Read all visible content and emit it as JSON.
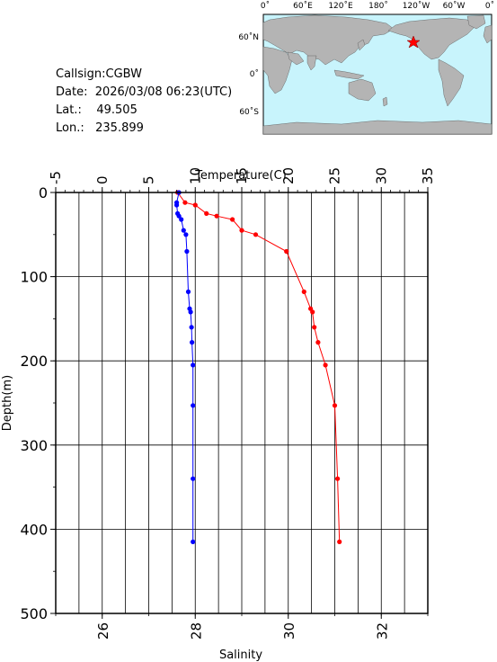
{
  "station": {
    "callsign_label": "Callsign:",
    "callsign": "CGBW",
    "date_label": "Date:",
    "date": "2026/03/08 06:23(UTC)",
    "lat_label": "Lat.:",
    "lat": "49.505",
    "lon_label": "Lon.:",
    "lon": "235.899"
  },
  "map": {
    "top_ticks": [
      "0˚",
      "60˚E",
      "120˚E",
      "180˚",
      "120˚W",
      "60˚W",
      "0˚"
    ],
    "left_ticks": [
      "60˚N",
      "0˚",
      "60˚S"
    ],
    "ocean_color": "#c8f4fc",
    "land_color": "#b4b4b4",
    "marker_color": "#ff0000",
    "marker_icon": "star-icon"
  },
  "chart_data": {
    "type": "line",
    "top_axis": {
      "label": "Temperature(C)",
      "range": [
        -5,
        35
      ],
      "ticks": [
        -5,
        0,
        5,
        10,
        15,
        20,
        25,
        30,
        35
      ]
    },
    "bottom_axis": {
      "label": "Salinity",
      "range": [
        25,
        33
      ],
      "ticks": [
        26,
        28,
        30,
        32
      ]
    },
    "left_axis": {
      "label": "Depth(m)",
      "range": [
        0,
        500
      ],
      "ticks": [
        0,
        100,
        200,
        300,
        400,
        500
      ]
    },
    "grid": true,
    "series": [
      {
        "color": "#ff0000",
        "axis": "temperature",
        "depth": [
          0,
          12,
          15,
          25,
          28,
          32,
          45,
          50,
          70,
          118,
          138,
          142,
          160,
          178,
          205,
          253,
          340,
          415
        ],
        "values": [
          8.1,
          8.9,
          10.0,
          11.2,
          12.3,
          14.0,
          15.0,
          16.5,
          19.8,
          21.7,
          22.4,
          22.6,
          22.8,
          23.2,
          24.0,
          25.0,
          25.3,
          25.5
        ]
      },
      {
        "color": "#0000ff",
        "axis": "salinity",
        "depth": [
          0,
          12,
          15,
          25,
          28,
          32,
          45,
          50,
          70,
          118,
          138,
          142,
          160,
          178,
          205,
          253,
          340,
          415
        ],
        "values": [
          27.65,
          27.6,
          27.6,
          27.62,
          27.65,
          27.7,
          27.75,
          27.8,
          27.82,
          27.85,
          27.88,
          27.9,
          27.92,
          27.93,
          27.95,
          27.95,
          27.95,
          27.95
        ]
      }
    ]
  }
}
